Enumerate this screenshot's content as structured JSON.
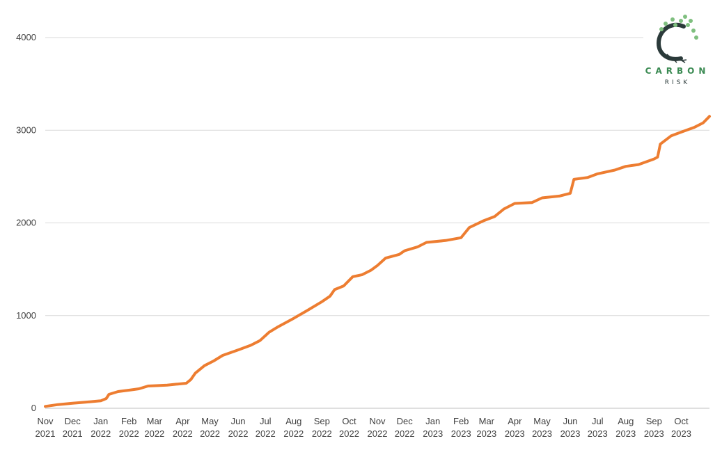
{
  "chart_data": {
    "type": "line",
    "title": "",
    "xlabel": "",
    "ylabel": "",
    "ylim": [
      0,
      4000
    ],
    "y_ticks": [
      0,
      1000,
      2000,
      3000,
      4000
    ],
    "grid": true,
    "legend": "none",
    "x_ticks": [
      {
        "month": "Nov",
        "year": "2021"
      },
      {
        "month": "Dec",
        "year": "2021"
      },
      {
        "month": "Jan",
        "year": "2022"
      },
      {
        "month": "Feb",
        "year": "2022"
      },
      {
        "month": "Mar",
        "year": "2022"
      },
      {
        "month": "Apr",
        "year": "2022"
      },
      {
        "month": "May",
        "year": "2022"
      },
      {
        "month": "Jun",
        "year": "2022"
      },
      {
        "month": "Jul",
        "year": "2022"
      },
      {
        "month": "Aug",
        "year": "2022"
      },
      {
        "month": "Sep",
        "year": "2022"
      },
      {
        "month": "Oct",
        "year": "2022"
      },
      {
        "month": "Nov",
        "year": "2022"
      },
      {
        "month": "Dec",
        "year": "2022"
      },
      {
        "month": "Jan",
        "year": "2023"
      },
      {
        "month": "Feb",
        "year": "2023"
      },
      {
        "month": "Mar",
        "year": "2023"
      },
      {
        "month": "Apr",
        "year": "2023"
      },
      {
        "month": "May",
        "year": "2023"
      },
      {
        "month": "Jun",
        "year": "2023"
      },
      {
        "month": "Jul",
        "year": "2023"
      },
      {
        "month": "Aug",
        "year": "2023"
      },
      {
        "month": "Sep",
        "year": "2023"
      },
      {
        "month": "Oct",
        "year": "2023"
      }
    ],
    "series": [
      {
        "color": "#ed7d31",
        "points": [
          [
            "2021-11-01",
            20
          ],
          [
            "2021-11-15",
            40
          ],
          [
            "2021-12-01",
            55
          ],
          [
            "2021-12-15",
            65
          ],
          [
            "2022-01-01",
            80
          ],
          [
            "2022-01-07",
            105
          ],
          [
            "2022-01-10",
            150
          ],
          [
            "2022-01-20",
            180
          ],
          [
            "2022-02-01",
            195
          ],
          [
            "2022-02-12",
            210
          ],
          [
            "2022-02-22",
            240
          ],
          [
            "2022-03-05",
            245
          ],
          [
            "2022-03-15",
            250
          ],
          [
            "2022-03-25",
            260
          ],
          [
            "2022-04-05",
            270
          ],
          [
            "2022-04-10",
            310
          ],
          [
            "2022-04-15",
            380
          ],
          [
            "2022-04-25",
            460
          ],
          [
            "2022-05-05",
            510
          ],
          [
            "2022-05-15",
            570
          ],
          [
            "2022-06-01",
            630
          ],
          [
            "2022-06-15",
            680
          ],
          [
            "2022-06-25",
            730
          ],
          [
            "2022-07-05",
            820
          ],
          [
            "2022-07-15",
            880
          ],
          [
            "2022-08-01",
            970
          ],
          [
            "2022-08-15",
            1050
          ],
          [
            "2022-09-01",
            1150
          ],
          [
            "2022-09-10",
            1210
          ],
          [
            "2022-09-15",
            1280
          ],
          [
            "2022-09-25",
            1320
          ],
          [
            "2022-10-05",
            1420
          ],
          [
            "2022-10-15",
            1440
          ],
          [
            "2022-10-25",
            1490
          ],
          [
            "2022-11-01",
            1540
          ],
          [
            "2022-11-10",
            1620
          ],
          [
            "2022-11-25",
            1660
          ],
          [
            "2022-12-01",
            1700
          ],
          [
            "2022-12-15",
            1740
          ],
          [
            "2022-12-25",
            1790
          ],
          [
            "2023-01-15",
            1810
          ],
          [
            "2023-02-01",
            1840
          ],
          [
            "2023-02-10",
            1950
          ],
          [
            "2023-02-25",
            2020
          ],
          [
            "2023-03-10",
            2070
          ],
          [
            "2023-03-20",
            2150
          ],
          [
            "2023-04-01",
            2210
          ],
          [
            "2023-04-20",
            2220
          ],
          [
            "2023-05-01",
            2270
          ],
          [
            "2023-05-20",
            2290
          ],
          [
            "2023-06-01",
            2320
          ],
          [
            "2023-06-05",
            2470
          ],
          [
            "2023-06-20",
            2490
          ],
          [
            "2023-07-01",
            2530
          ],
          [
            "2023-07-20",
            2570
          ],
          [
            "2023-08-01",
            2610
          ],
          [
            "2023-08-15",
            2630
          ],
          [
            "2023-09-01",
            2690
          ],
          [
            "2023-09-05",
            2710
          ],
          [
            "2023-09-08",
            2850
          ],
          [
            "2023-09-20",
            2940
          ],
          [
            "2023-10-01",
            2980
          ],
          [
            "2023-10-15",
            3030
          ],
          [
            "2023-10-25",
            3080
          ],
          [
            "2023-11-01",
            3150
          ]
        ]
      }
    ]
  },
  "logo": {
    "word": "CARBON",
    "sub": "RISK",
    "color": "#3a8a52",
    "dark_color": "#2b3a3a",
    "leaf_color": "#7fbf7f"
  }
}
